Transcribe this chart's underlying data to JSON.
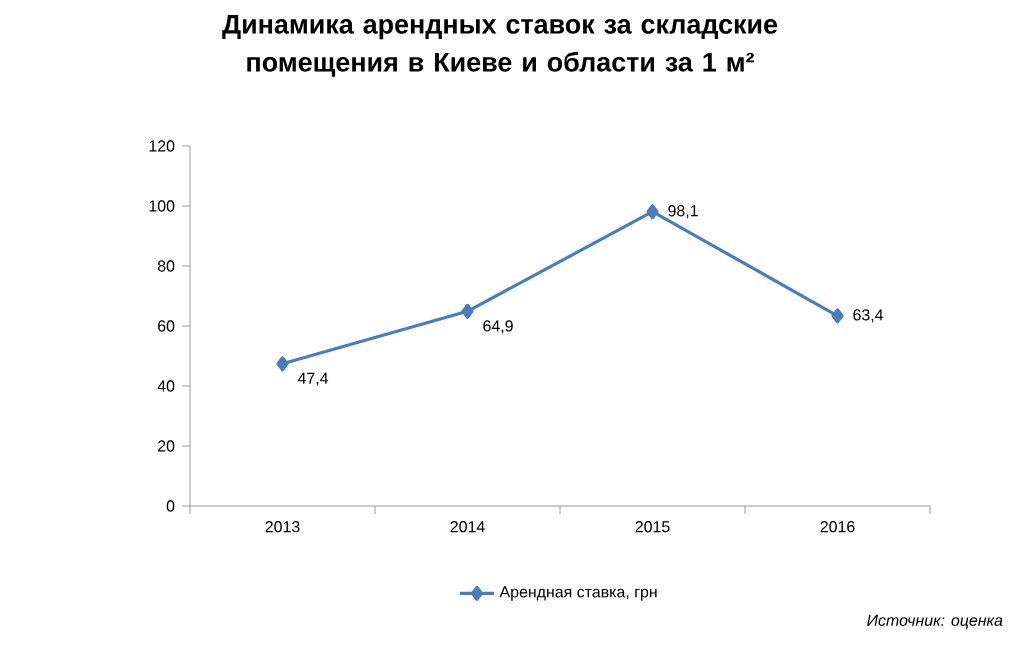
{
  "chart_data": {
    "type": "line",
    "title": "Динамика арендных ставок за складские помещения в Киеве и области за 1 м²",
    "categories": [
      "2013",
      "2014",
      "2015",
      "2016"
    ],
    "series": [
      {
        "name": "Арендная ставка, грн",
        "color": "#4a7ebb",
        "values": [
          47.4,
          64.9,
          98.1,
          63.4
        ],
        "value_labels": [
          "47,4",
          "64,9",
          "98,1",
          "63,4"
        ]
      }
    ],
    "ylim": [
      0,
      120
    ],
    "yticks": [
      0,
      20,
      40,
      60,
      80,
      100,
      120
    ],
    "grid": false,
    "legend": "bottom",
    "marker": "diamond",
    "line_style": "solid",
    "annotations": [
      "Источник: оценка"
    ]
  }
}
